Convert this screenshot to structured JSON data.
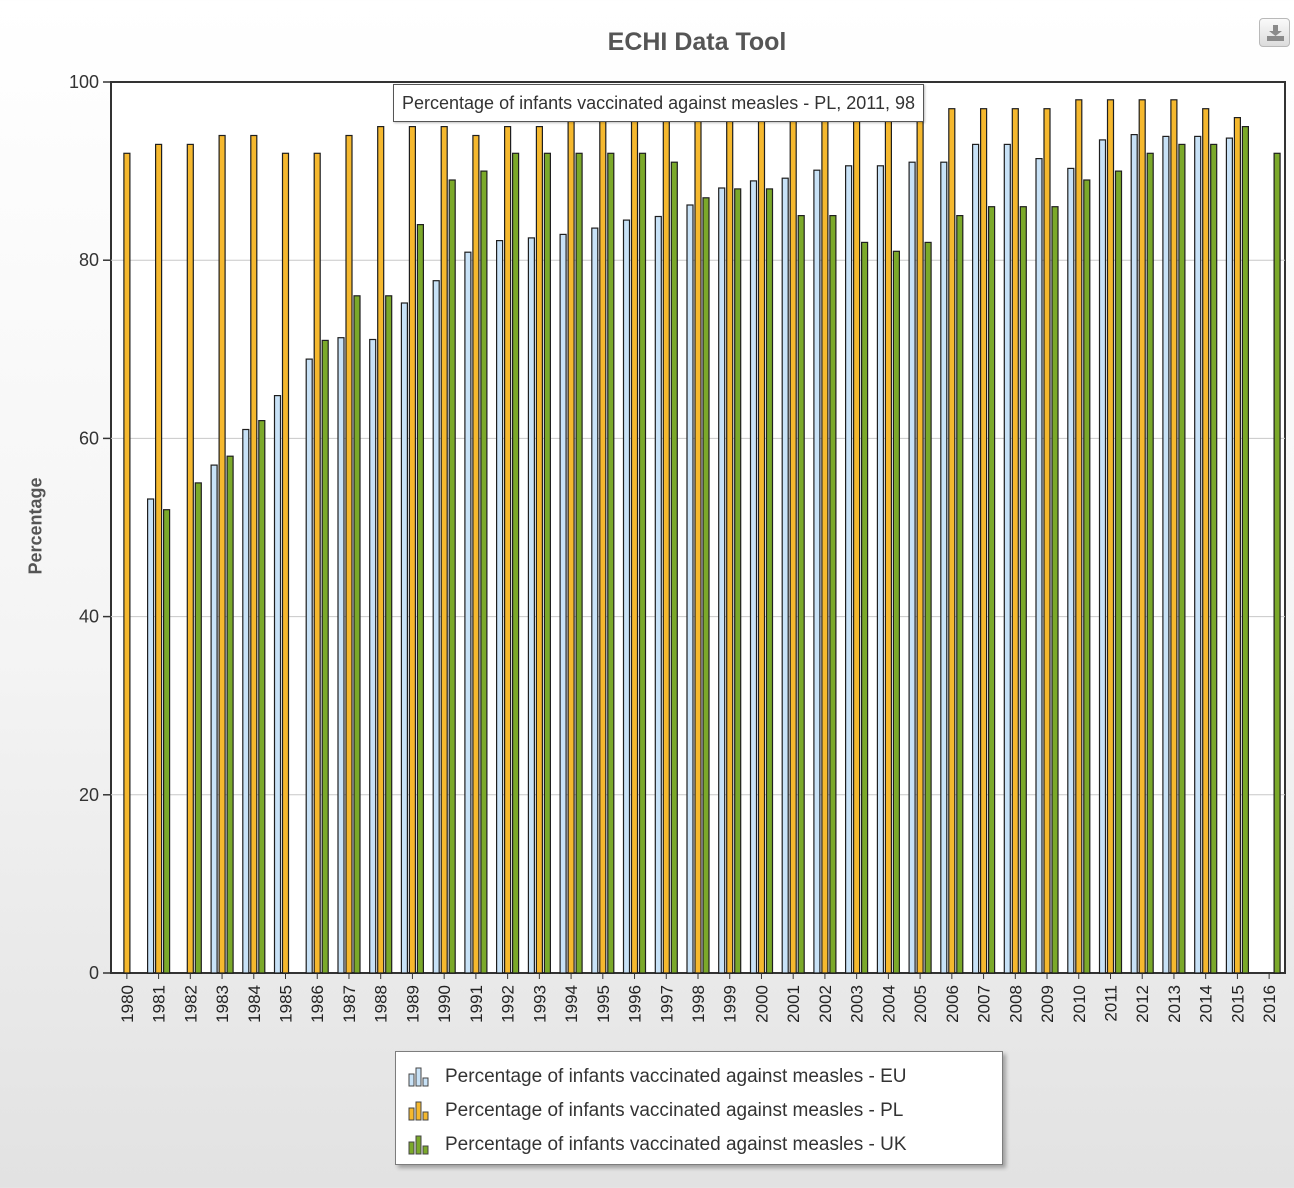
{
  "chart_data": {
    "type": "bar",
    "title": "ECHI Data Tool",
    "ylabel": "Percentage",
    "xlabel": "",
    "ylim": [
      0,
      100
    ],
    "yticks": [
      0,
      20,
      40,
      60,
      80,
      100
    ],
    "grid": true,
    "legend_position": "bottom",
    "categories": [
      "1980",
      "1981",
      "1982",
      "1983",
      "1984",
      "1985",
      "1986",
      "1987",
      "1988",
      "1989",
      "1990",
      "1991",
      "1992",
      "1993",
      "1994",
      "1995",
      "1996",
      "1997",
      "1998",
      "1999",
      "2000",
      "2001",
      "2002",
      "2003",
      "2004",
      "2005",
      "2006",
      "2007",
      "2008",
      "2009",
      "2010",
      "2011",
      "2012",
      "2013",
      "2014",
      "2015",
      "2016"
    ],
    "series": [
      {
        "name": "Percentage of infants vaccinated against measles - EU",
        "color": "#c8e2f7",
        "values": [
          null,
          53.2,
          null,
          57,
          61,
          64.8,
          68.9,
          71.3,
          71.1,
          75.2,
          77.7,
          80.9,
          82.2,
          82.5,
          82.9,
          83.6,
          84.5,
          84.9,
          86.2,
          88.1,
          88.9,
          89.2,
          90.1,
          90.6,
          90.6,
          91,
          91,
          93,
          93,
          91.4,
          90.3,
          93.5,
          94.1,
          93.9,
          93.9,
          93.7,
          null
        ]
      },
      {
        "name": "Percentage of infants vaccinated against measles - PL",
        "color": "#f5b82e",
        "values": [
          92,
          93,
          93,
          94,
          94,
          92,
          92,
          94,
          95,
          95,
          95,
          94,
          95,
          95,
          96,
          96,
          96,
          97,
          97,
          97,
          97,
          97,
          97,
          97,
          97,
          97,
          97,
          97,
          97,
          97,
          98,
          98,
          98,
          98,
          97,
          96,
          null
        ]
      },
      {
        "name": "Percentage of infants vaccinated against measles - UK",
        "color": "#7ba92a",
        "values": [
          null,
          52,
          55,
          58,
          62,
          null,
          71,
          76,
          76,
          84,
          89,
          90,
          92,
          92,
          92,
          92,
          92,
          91,
          87,
          88,
          88,
          85,
          85,
          82,
          81,
          82,
          85,
          86,
          86,
          86,
          89,
          90,
          92,
          93,
          93,
          95,
          92
        ]
      }
    ]
  },
  "tooltip_text": "Percentage of infants vaccinated against measles - PL, 2011, 98",
  "icons": {
    "export": "download-icon"
  }
}
